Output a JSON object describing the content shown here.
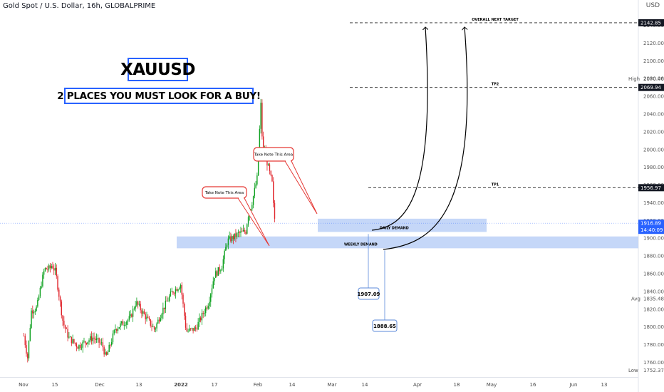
{
  "header": {
    "symbol_title": "Gold Spot / U.S. Dollar, 16h, GLOBALPRIME",
    "currency": "USD"
  },
  "annotations": {
    "headline": "XAUUSD",
    "subheadline": "2 PLACES YOU MUST LOOK FOR A BUY!",
    "callout_left": "Take Note This Area",
    "callout_right": "Take Note This Area",
    "overall_target": "OVERALL NEXT TARGET",
    "tp2": "TP2",
    "tp1": "TP1",
    "daily_demand": "DAILY DEMAND",
    "weekly_demand": "WEEKLY DEMAND",
    "daily_demand_level": "1907.09",
    "weekly_demand_level": "1888.65"
  },
  "colors": {
    "up": "#26a69a",
    "up_candle": "#0ca01e",
    "down": "#e0242b",
    "zone": "#bbd0f7",
    "accent": "#2962ff",
    "callout": "#e53935",
    "price_tag": "#2962ff",
    "dark_tag": "#131722"
  },
  "chart_data": {
    "type": "candlestick",
    "title": "Gold Spot / U.S. Dollar, 16h, GLOBALPRIME",
    "ylim": [
      1750,
      2150
    ],
    "y_ticks": [
      1760,
      1780,
      1800,
      1820,
      1840,
      1860,
      1880,
      1900,
      1920,
      1940,
      1960,
      1980,
      2000,
      2020,
      2040,
      2060,
      2080,
      2100,
      2120,
      2140
    ],
    "x_ticks": [
      "Nov",
      "15",
      "Dec",
      "13",
      "2022",
      "17",
      "Feb",
      "14",
      "Mar",
      "14",
      "Apr",
      "18",
      "May",
      "16",
      "Jun",
      "13"
    ],
    "price_path": [
      [
        "2021-11-01",
        1790
      ],
      [
        "2021-11-03",
        1765
      ],
      [
        "2021-11-05",
        1818
      ],
      [
        "2021-11-08",
        1822
      ],
      [
        "2021-11-10",
        1845
      ],
      [
        "2021-11-12",
        1865
      ],
      [
        "2021-11-15",
        1866
      ],
      [
        "2021-11-16",
        1870
      ],
      [
        "2021-11-18",
        1862
      ],
      [
        "2021-11-22",
        1805
      ],
      [
        "2021-11-25",
        1788
      ],
      [
        "2021-11-30",
        1778
      ],
      [
        "2021-12-03",
        1782
      ],
      [
        "2021-12-08",
        1788
      ],
      [
        "2021-12-13",
        1780
      ],
      [
        "2021-12-15",
        1765
      ],
      [
        "2021-12-20",
        1798
      ],
      [
        "2021-12-28",
        1810
      ],
      [
        "2021-12-31",
        1828
      ],
      [
        "2022-01-05",
        1812
      ],
      [
        "2022-01-10",
        1797
      ],
      [
        "2022-01-14",
        1818
      ],
      [
        "2022-01-19",
        1838
      ],
      [
        "2022-01-24",
        1848
      ],
      [
        "2022-01-27",
        1795
      ],
      [
        "2022-02-01",
        1798
      ],
      [
        "2022-02-08",
        1828
      ],
      [
        "2022-02-11",
        1858
      ],
      [
        "2022-02-15",
        1868
      ],
      [
        "2022-02-18",
        1897
      ],
      [
        "2022-02-22",
        1902
      ],
      [
        "2022-02-24",
        1905
      ],
      [
        "2022-02-28",
        1908
      ],
      [
        "2022-03-01",
        1925
      ],
      [
        "2022-03-03",
        1938
      ],
      [
        "2022-03-06",
        1968
      ],
      [
        "2022-03-08",
        2052
      ],
      [
        "2022-03-09",
        1995
      ],
      [
        "2022-03-10",
        2000
      ],
      [
        "2022-03-11",
        1988
      ],
      [
        "2022-03-14",
        1962
      ],
      [
        "2022-03-15",
        1925
      ],
      [
        "2022-03-16",
        1917
      ]
    ],
    "levels": {
      "overall_next_target": 2142.85,
      "high": 2070.46,
      "tp2": 2069.94,
      "tp1": 1956.97,
      "current": 1916.89,
      "avg": 1835.48,
      "low": 1752.37,
      "daily_demand": 1907.09,
      "weekly_demand": 1888.65
    },
    "zones": [
      {
        "name": "DAILY DEMAND",
        "from": 1907.09,
        "to": 1922
      },
      {
        "name": "WEEKLY DEMAND",
        "from": 1888.65,
        "to": 1902
      }
    ],
    "axis_tags": {
      "high_label": "High",
      "avg_label": "Avg",
      "low_label": "Low",
      "current_time": "14:40:09"
    }
  }
}
